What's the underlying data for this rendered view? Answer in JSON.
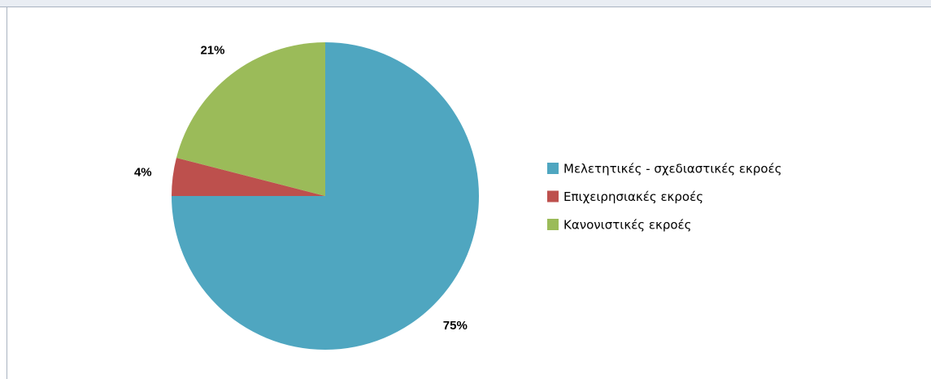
{
  "chart_data": {
    "type": "pie",
    "categories": [
      "Μελετητικές - σχεδιαστικές εκροές",
      "Επιχειρησιακές εκροές",
      "Κανονιστικές εκροές"
    ],
    "values": [
      75,
      4,
      21
    ],
    "value_labels": [
      "75%",
      "4%",
      "21%"
    ],
    "colors": [
      "#4fa6c0",
      "#bd504d",
      "#9bbb59"
    ],
    "legend": "right"
  }
}
